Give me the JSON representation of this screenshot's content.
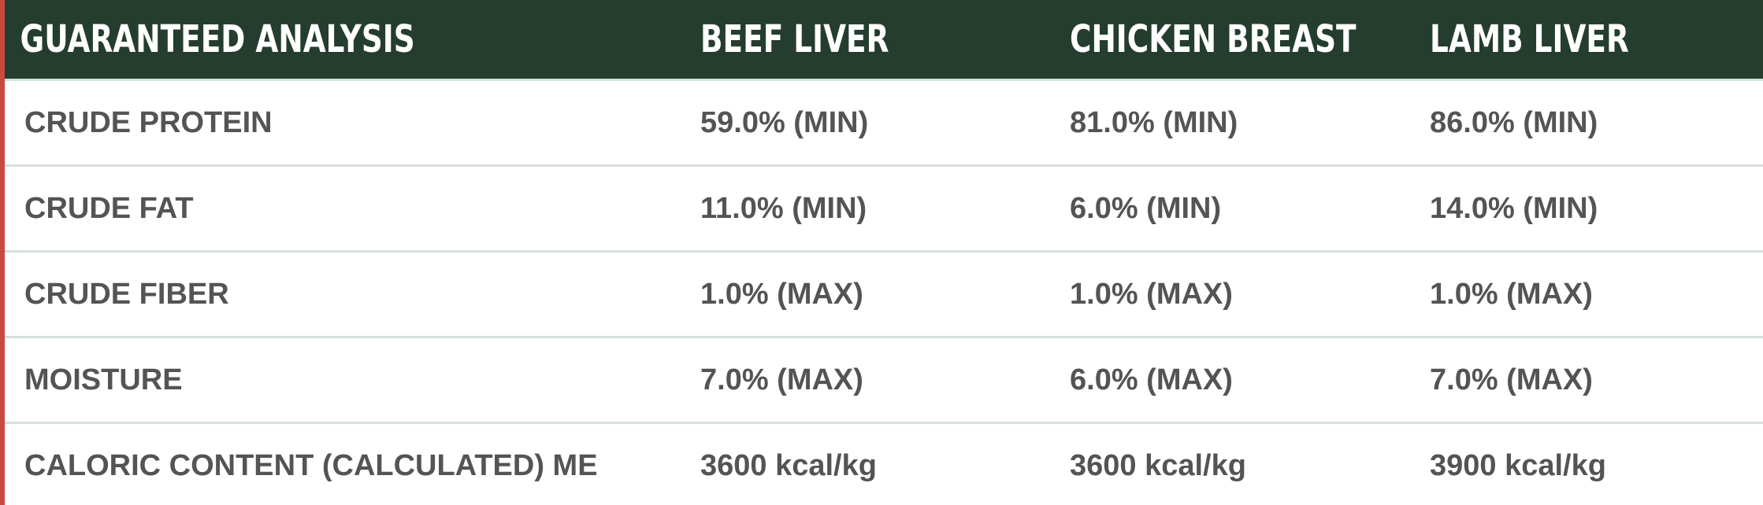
{
  "table": {
    "headers": [
      "GUARANTEED ANALYSIS",
      "BEEF LIVER",
      "CHICKEN BREAST",
      "LAMB LIVER"
    ],
    "rows": [
      [
        "CRUDE PROTEIN",
        "59.0% (MIN)",
        "81.0% (MIN)",
        "86.0% (MIN)"
      ],
      [
        "CRUDE FAT",
        "11.0% (MIN)",
        "6.0% (MIN)",
        "14.0% (MIN)"
      ],
      [
        "CRUDE FIBER",
        "1.0% (MAX)",
        "1.0% (MAX)",
        "1.0% (MAX)"
      ],
      [
        "MOISTURE",
        "7.0% (MAX)",
        "6.0% (MAX)",
        "7.0% (MAX)"
      ],
      [
        "CALORIC CONTENT (CALCULATED) ME",
        "3600 kcal/kg",
        "3600 kcal/kg",
        "3900 kcal/kg"
      ]
    ]
  },
  "colors": {
    "header_bg": "#243d2f",
    "header_text": "#ffffff",
    "body_text": "#545454",
    "accent_left_border": "#c84b3e",
    "row_divider": "#d8dfdb"
  }
}
